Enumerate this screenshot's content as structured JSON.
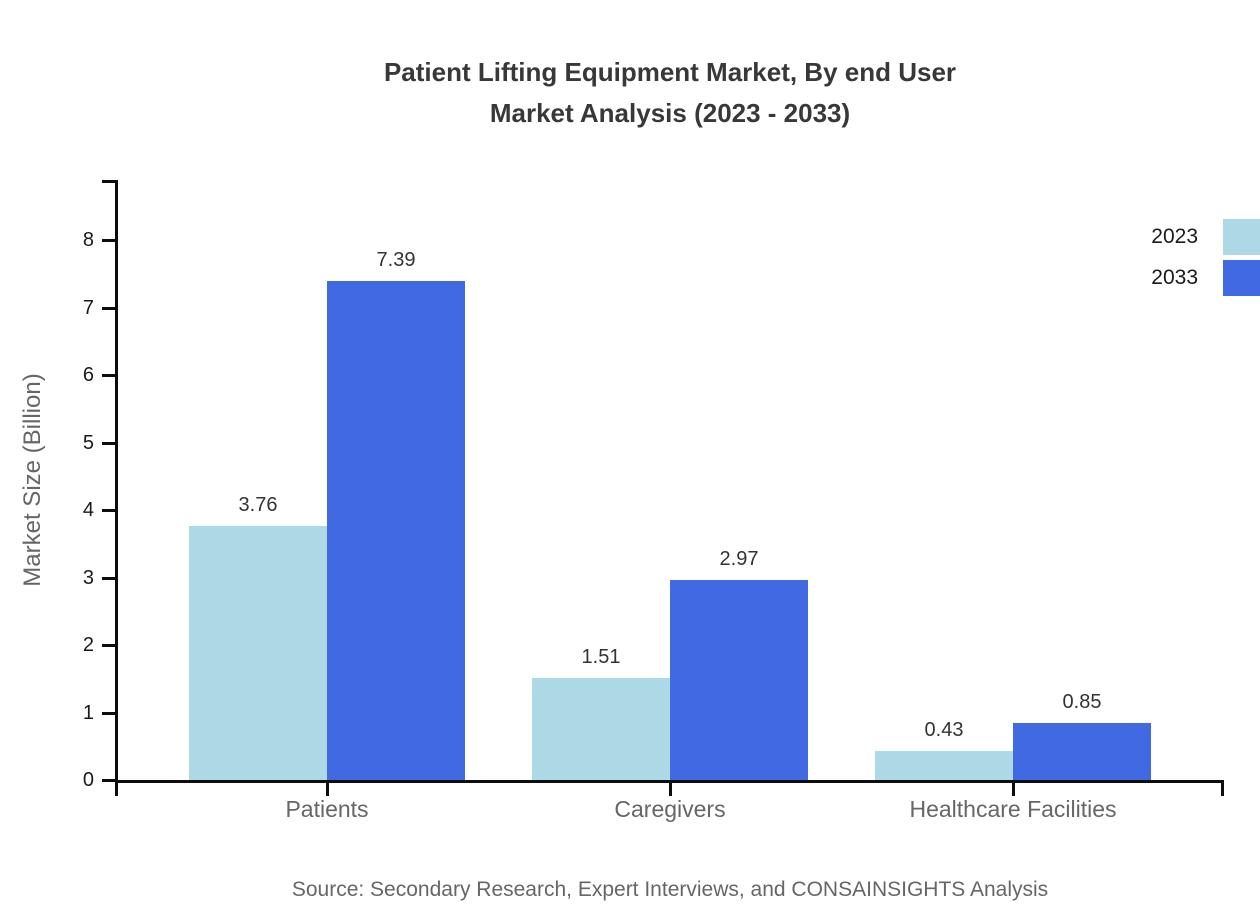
{
  "chart": {
    "title_lines": [
      "Patient Lifting Equipment Market, By end User",
      "Market Analysis (2023 - 2033)"
    ],
    "source": "Source: Secondary Research, Expert Interviews, and CONSAINSIGHTS Analysis"
  },
  "chart_data": {
    "type": "bar",
    "title": "Patient Lifting Equipment Market, By end User Market Analysis (2023 - 2033)",
    "categories": [
      "Patients",
      "Caregivers",
      "Healthcare Facilities"
    ],
    "series": [
      {
        "name": "2023",
        "color": "#ADD8E6",
        "values": [
          3.76,
          1.51,
          0.43
        ]
      },
      {
        "name": "2033",
        "color": "#4169E1",
        "values": [
          7.39,
          2.97,
          0.85
        ]
      }
    ],
    "xlabel": "",
    "ylabel": "Market Size (Billion)",
    "yticks": [
      0,
      1,
      2,
      3,
      4,
      5,
      6,
      7,
      8
    ],
    "ylim": [
      0,
      8.6
    ],
    "grid": false,
    "legend_position": "top-right",
    "value_labels": true,
    "colors": {
      "axis": "#0d0d0d",
      "title_text": "#383838",
      "tick_text": "#1a1a1a",
      "value_text": "#333333",
      "muted_text": "#666666",
      "background": "#ffffff"
    }
  }
}
